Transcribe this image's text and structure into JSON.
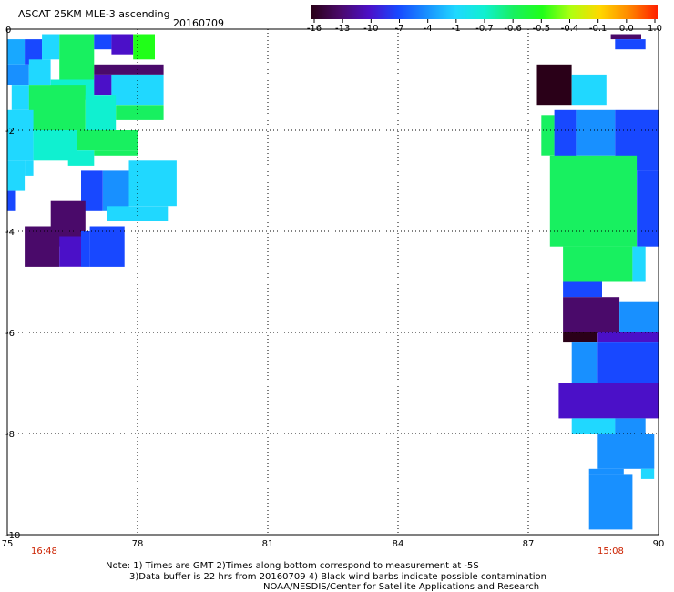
{
  "chart_data": {
    "type": "heatmap",
    "title": "ASCAT 25KM MLE-3 ascending",
    "subtitle": "20160709",
    "xlabel": "",
    "ylabel": "",
    "xlim": [
      75,
      90
    ],
    "ylim": [
      -10,
      0
    ],
    "x_ticks": [
      75,
      78,
      81,
      84,
      87,
      90
    ],
    "y_ticks": [
      0,
      -2,
      -4,
      -6,
      -8,
      -10
    ],
    "grid": true,
    "colorbar": {
      "tick_labels": [
        "-16",
        "-13",
        "-10",
        "-7",
        "-4",
        "-1",
        "-0.7",
        "-0.6",
        "-0.5",
        "-0.4",
        "-0.1",
        "0.0",
        "1.0"
      ],
      "colors": [
        "#2a0018",
        "#4a0a6a",
        "#4b10c8",
        "#1848ff",
        "#1890ff",
        "#20d8ff",
        "#10f0d0",
        "#18f060",
        "#20ff18",
        "#b0ff10",
        "#ffd800",
        "#ff8800",
        "#ff2000"
      ]
    },
    "cells": [
      {
        "x0": 75.0,
        "x1": 75.4,
        "y0": -0.2,
        "y1": -0.7,
        "c": "#18a8ff"
      },
      {
        "x0": 75.4,
        "x1": 75.8,
        "y0": -0.2,
        "y1": -0.7,
        "c": "#1848ff"
      },
      {
        "x0": 75.8,
        "x1": 76.2,
        "y0": -0.1,
        "y1": -0.6,
        "c": "#20d8ff"
      },
      {
        "x0": 76.2,
        "x1": 77.0,
        "y0": -0.1,
        "y1": -1.0,
        "c": "#18f060"
      },
      {
        "x0": 77.0,
        "x1": 77.4,
        "y0": -0.1,
        "y1": -0.4,
        "c": "#1848ff"
      },
      {
        "x0": 77.4,
        "x1": 77.9,
        "y0": -0.1,
        "y1": -0.5,
        "c": "#4b10c8"
      },
      {
        "x0": 77.9,
        "x1": 78.4,
        "y0": -0.1,
        "y1": -0.6,
        "c": "#20ff18"
      },
      {
        "x0": 75.0,
        "x1": 75.5,
        "y0": -0.7,
        "y1": -1.1,
        "c": "#1890ff"
      },
      {
        "x0": 75.5,
        "x1": 76.0,
        "y0": -0.6,
        "y1": -1.1,
        "c": "#20d8ff"
      },
      {
        "x0": 76.0,
        "x1": 77.0,
        "y0": -1.0,
        "y1": -1.4,
        "c": "#10f0d0"
      },
      {
        "x0": 77.0,
        "x1": 78.6,
        "y0": -0.7,
        "y1": -0.9,
        "c": "#4a0a6a"
      },
      {
        "x0": 77.0,
        "x1": 77.4,
        "y0": -0.9,
        "y1": -1.3,
        "c": "#4b10c8"
      },
      {
        "x0": 77.4,
        "x1": 78.6,
        "y0": -0.9,
        "y1": -1.5,
        "c": "#20d8ff"
      },
      {
        "x0": 75.1,
        "x1": 75.5,
        "y0": -1.1,
        "y1": -1.6,
        "c": "#20d8ff"
      },
      {
        "x0": 75.5,
        "x1": 76.8,
        "y0": -1.1,
        "y1": -2.0,
        "c": "#18f060"
      },
      {
        "x0": 76.8,
        "x1": 77.5,
        "y0": -1.3,
        "y1": -2.0,
        "c": "#10f0d0"
      },
      {
        "x0": 77.5,
        "x1": 78.6,
        "y0": -1.5,
        "y1": -1.8,
        "c": "#18f060"
      },
      {
        "x0": 75.0,
        "x1": 75.6,
        "y0": -1.6,
        "y1": -2.6,
        "c": "#20d8ff"
      },
      {
        "x0": 75.6,
        "x1": 76.6,
        "y0": -2.0,
        "y1": -2.6,
        "c": "#10f0d0"
      },
      {
        "x0": 76.6,
        "x1": 78.0,
        "y0": -2.0,
        "y1": -2.4,
        "c": "#18f060"
      },
      {
        "x0": 75.0,
        "x1": 75.4,
        "y0": -2.6,
        "y1": -3.2,
        "c": "#20d8ff"
      },
      {
        "x0": 75.0,
        "x1": 75.2,
        "y0": -3.2,
        "y1": -3.6,
        "c": "#1848ff"
      },
      {
        "x0": 75.4,
        "x1": 75.6,
        "y0": -2.6,
        "y1": -2.9,
        "c": "#20d8ff"
      },
      {
        "x0": 76.4,
        "x1": 77.0,
        "y0": -2.4,
        "y1": -2.7,
        "c": "#10f0d0"
      },
      {
        "x0": 77.0,
        "x1": 78.0,
        "y0": -2.4,
        "y1": -2.5,
        "c": "#18f060"
      },
      {
        "x0": 76.7,
        "x1": 77.2,
        "y0": -2.8,
        "y1": -3.6,
        "c": "#1848ff"
      },
      {
        "x0": 77.2,
        "x1": 77.8,
        "y0": -2.8,
        "y1": -3.6,
        "c": "#1890ff"
      },
      {
        "x0": 77.8,
        "x1": 78.9,
        "y0": -2.6,
        "y1": -3.5,
        "c": "#20d8ff"
      },
      {
        "x0": 77.3,
        "x1": 78.7,
        "y0": -3.5,
        "y1": -3.8,
        "c": "#20d8ff"
      },
      {
        "x0": 76.0,
        "x1": 76.8,
        "y0": -3.4,
        "y1": -4.3,
        "c": "#4a0a6a"
      },
      {
        "x0": 75.4,
        "x1": 76.2,
        "y0": -3.9,
        "y1": -4.7,
        "c": "#4a0a6a"
      },
      {
        "x0": 76.2,
        "x1": 76.7,
        "y0": -4.1,
        "y1": -4.7,
        "c": "#4b10c8"
      },
      {
        "x0": 76.7,
        "x1": 76.9,
        "y0": -4.0,
        "y1": -4.7,
        "c": "#1848ff"
      },
      {
        "x0": 76.9,
        "x1": 77.7,
        "y0": -3.9,
        "y1": -4.7,
        "c": "#1848ff"
      },
      {
        "x0": 87.2,
        "x1": 88.0,
        "y0": -0.7,
        "y1": -1.5,
        "c": "#2a0018"
      },
      {
        "x0": 88.0,
        "x1": 88.8,
        "y0": -0.9,
        "y1": -1.5,
        "c": "#20d8ff"
      },
      {
        "x0": 88.9,
        "x1": 89.6,
        "y0": -0.1,
        "y1": -0.2,
        "c": "#4a0a6a"
      },
      {
        "x0": 89.0,
        "x1": 89.7,
        "y0": -0.2,
        "y1": -0.4,
        "c": "#1848ff"
      },
      {
        "x0": 87.3,
        "x1": 87.6,
        "y0": -1.7,
        "y1": -2.5,
        "c": "#18f060"
      },
      {
        "x0": 87.6,
        "x1": 88.1,
        "y0": -1.6,
        "y1": -2.7,
        "c": "#1848ff"
      },
      {
        "x0": 88.1,
        "x1": 89.0,
        "y0": -1.6,
        "y1": -2.5,
        "c": "#1890ff"
      },
      {
        "x0": 89.0,
        "x1": 90.0,
        "y0": -1.6,
        "y1": -2.8,
        "c": "#1848ff"
      },
      {
        "x0": 87.5,
        "x1": 89.5,
        "y0": -2.5,
        "y1": -4.3,
        "c": "#18f060"
      },
      {
        "x0": 89.5,
        "x1": 90.0,
        "y0": -2.8,
        "y1": -4.3,
        "c": "#1848ff"
      },
      {
        "x0": 87.8,
        "x1": 89.4,
        "y0": -4.3,
        "y1": -5.0,
        "c": "#18f060"
      },
      {
        "x0": 89.4,
        "x1": 89.7,
        "y0": -4.3,
        "y1": -5.0,
        "c": "#20d8ff"
      },
      {
        "x0": 87.8,
        "x1": 88.7,
        "y0": -5.0,
        "y1": -5.3,
        "c": "#1848ff"
      },
      {
        "x0": 87.8,
        "x1": 89.1,
        "y0": -5.3,
        "y1": -6.0,
        "c": "#4a0a6a"
      },
      {
        "x0": 89.1,
        "x1": 90.0,
        "y0": -5.4,
        "y1": -6.0,
        "c": "#1890ff"
      },
      {
        "x0": 87.8,
        "x1": 88.6,
        "y0": -6.0,
        "y1": -6.2,
        "c": "#2a0018"
      },
      {
        "x0": 88.6,
        "x1": 90.0,
        "y0": -6.0,
        "y1": -6.2,
        "c": "#4b10c8"
      },
      {
        "x0": 88.0,
        "x1": 88.6,
        "y0": -6.2,
        "y1": -7.0,
        "c": "#1890ff"
      },
      {
        "x0": 88.6,
        "x1": 90.0,
        "y0": -6.2,
        "y1": -7.0,
        "c": "#1848ff"
      },
      {
        "x0": 87.7,
        "x1": 90.0,
        "y0": -7.0,
        "y1": -7.7,
        "c": "#4b10c8"
      },
      {
        "x0": 88.0,
        "x1": 89.0,
        "y0": -7.7,
        "y1": -8.0,
        "c": "#20d8ff"
      },
      {
        "x0": 89.0,
        "x1": 89.7,
        "y0": -7.7,
        "y1": -8.0,
        "c": "#1890ff"
      },
      {
        "x0": 88.6,
        "x1": 89.9,
        "y0": -8.0,
        "y1": -8.7,
        "c": "#1890ff"
      },
      {
        "x0": 89.6,
        "x1": 89.9,
        "y0": -8.7,
        "y1": -8.9,
        "c": "#20d8ff"
      },
      {
        "x0": 88.4,
        "x1": 89.2,
        "y0": -8.7,
        "y1": -8.8,
        "c": "#1890ff"
      },
      {
        "x0": 88.4,
        "x1": 89.4,
        "y0": -8.8,
        "y1": -9.9,
        "c": "#1890ff"
      }
    ]
  },
  "labels": {
    "time_left": "16:48",
    "time_right": "15:08",
    "note_line1": "Note: 1) Times are GMT 2)Times along bottom correspond to measurement at -5S",
    "note_line2": "3)Data buffer is 22 hrs from 20160709 4) Black wind barbs indicate possible contamination",
    "note_line3": "NOAA/NESDIS/Center for Satellite Applications and Research"
  }
}
